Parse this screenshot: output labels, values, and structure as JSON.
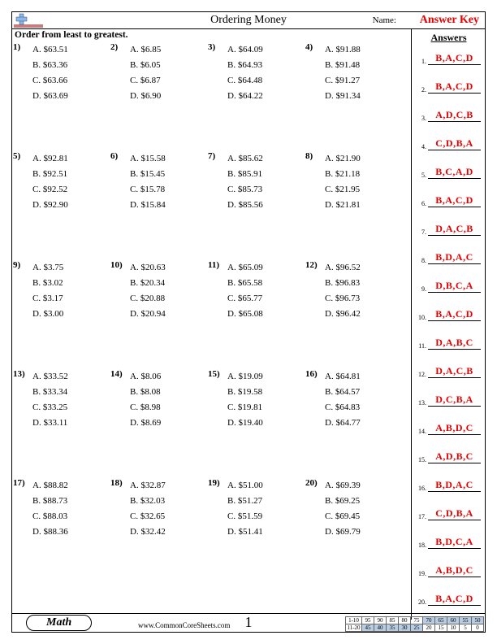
{
  "header": {
    "title": "Ordering Money",
    "name_label": "Name:",
    "answer_key": "Answer Key"
  },
  "instruction": "Order from least to greatest.",
  "answers_title": "Answers",
  "problems": [
    {
      "n": "1)",
      "a": "$63.51",
      "b": "$63.36",
      "c": "$63.66",
      "d": "$63.69"
    },
    {
      "n": "2)",
      "a": "$6.85",
      "b": "$6.05",
      "c": "$6.87",
      "d": "$6.90"
    },
    {
      "n": "3)",
      "a": "$64.09",
      "b": "$64.93",
      "c": "$64.48",
      "d": "$64.22"
    },
    {
      "n": "4)",
      "a": "$91.88",
      "b": "$91.48",
      "c": "$91.27",
      "d": "$91.34"
    },
    {
      "n": "5)",
      "a": "$92.81",
      "b": "$92.51",
      "c": "$92.52",
      "d": "$92.90"
    },
    {
      "n": "6)",
      "a": "$15.58",
      "b": "$15.45",
      "c": "$15.78",
      "d": "$15.84"
    },
    {
      "n": "7)",
      "a": "$85.62",
      "b": "$85.91",
      "c": "$85.73",
      "d": "$85.56"
    },
    {
      "n": "8)",
      "a": "$21.90",
      "b": "$21.18",
      "c": "$21.95",
      "d": "$21.81"
    },
    {
      "n": "9)",
      "a": "$3.75",
      "b": "$3.02",
      "c": "$3.17",
      "d": "$3.00"
    },
    {
      "n": "10)",
      "a": "$20.63",
      "b": "$20.34",
      "c": "$20.88",
      "d": "$20.94"
    },
    {
      "n": "11)",
      "a": "$65.09",
      "b": "$65.58",
      "c": "$65.77",
      "d": "$65.08"
    },
    {
      "n": "12)",
      "a": "$96.52",
      "b": "$96.83",
      "c": "$96.73",
      "d": "$96.42"
    },
    {
      "n": "13)",
      "a": "$33.52",
      "b": "$33.34",
      "c": "$33.25",
      "d": "$33.11"
    },
    {
      "n": "14)",
      "a": "$8.06",
      "b": "$8.08",
      "c": "$8.98",
      "d": "$8.69"
    },
    {
      "n": "15)",
      "a": "$19.09",
      "b": "$19.58",
      "c": "$19.81",
      "d": "$19.40"
    },
    {
      "n": "16)",
      "a": "$64.81",
      "b": "$64.57",
      "c": "$64.83",
      "d": "$64.77"
    },
    {
      "n": "17)",
      "a": "$88.82",
      "b": "$88.73",
      "c": "$88.03",
      "d": "$88.36"
    },
    {
      "n": "18)",
      "a": "$32.87",
      "b": "$32.03",
      "c": "$32.65",
      "d": "$32.42"
    },
    {
      "n": "19)",
      "a": "$51.00",
      "b": "$51.27",
      "c": "$51.59",
      "d": "$51.41"
    },
    {
      "n": "20)",
      "a": "$69.39",
      "b": "$69.25",
      "c": "$69.45",
      "d": "$69.79"
    }
  ],
  "answers": [
    "B,A,C,D",
    "B,A,C,D",
    "A,D,C,B",
    "C,D,B,A",
    "B,C,A,D",
    "B,A,C,D",
    "D,A,C,B",
    "B,D,A,C",
    "D,B,C,A",
    "B,A,C,D",
    "D,A,B,C",
    "D,A,C,B",
    "D,C,B,A",
    "A,B,D,C",
    "A,D,B,C",
    "B,D,A,C",
    "C,D,B,A",
    "B,D,C,A",
    "A,B,D,C",
    "B,A,C,D"
  ],
  "footer": {
    "subject": "Math",
    "url": "www.CommonCoreSheets.com",
    "page": "1",
    "score": {
      "row1_label": "1-10",
      "row2_label": "11-20",
      "row1": [
        "95",
        "90",
        "85",
        "80",
        "75",
        "70",
        "65",
        "60",
        "55",
        "50"
      ],
      "row2": [
        "45",
        "40",
        "35",
        "30",
        "25",
        "20",
        "15",
        "10",
        "5",
        "0"
      ]
    }
  },
  "colors": {
    "answer_red": "#e60000",
    "shade_blue": "#b8cce4"
  }
}
